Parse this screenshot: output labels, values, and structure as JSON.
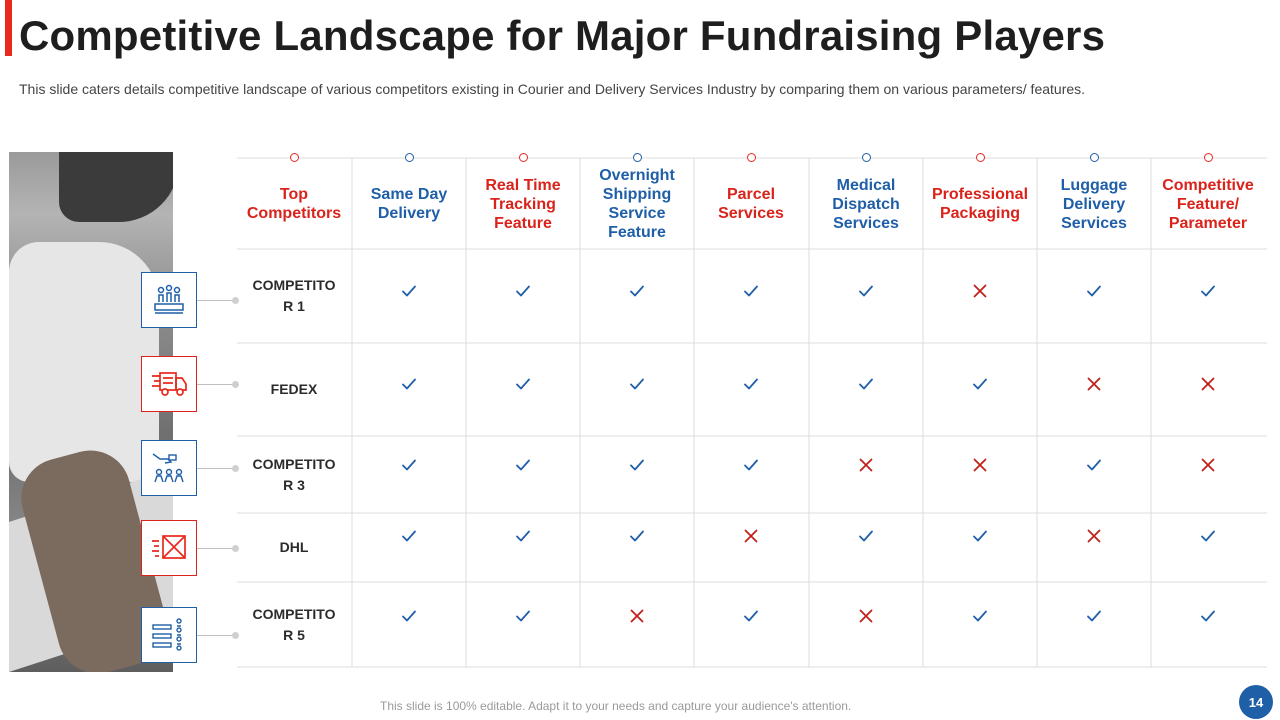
{
  "slide": {
    "title": "Competitive Landscape for Major Fundraising Players",
    "subtitle": "This slide caters details competitive landscape of various competitors existing in Courier and Delivery Services Industry by comparing them on various parameters/ features.",
    "footer": "This slide is 100% editable. Adapt it to your needs and capture your audience's attention.",
    "page_number": "14"
  },
  "colors": {
    "accent_red": "#e8291c",
    "accent_blue": "#1f5fa8",
    "check": "#1f5fa8",
    "cross": "#c4201a"
  },
  "table": {
    "headers": [
      {
        "label": "Top Competitors",
        "color": "red"
      },
      {
        "label": "Same Day Delivery",
        "color": "blue"
      },
      {
        "label": "Real Time Tracking Feature",
        "color": "red"
      },
      {
        "label": "Overnight Shipping Service Feature",
        "color": "blue"
      },
      {
        "label": "Parcel Services",
        "color": "red"
      },
      {
        "label": "Medical Dispatch Services",
        "color": "blue"
      },
      {
        "label": "Professional Packaging",
        "color": "red"
      },
      {
        "label": "Luggage Delivery Services",
        "color": "blue"
      },
      {
        "label": "Competitive Feature/ Parameter",
        "color": "red"
      }
    ],
    "rows": [
      {
        "name": "COMPETITOR 1",
        "icon": "people-podium-icon",
        "marks": [
          "check",
          "check",
          "check",
          "check",
          "check",
          "cross",
          "check",
          "check"
        ]
      },
      {
        "name": "FEDEX",
        "icon": "delivery-truck-icon",
        "marks": [
          "check",
          "check",
          "check",
          "check",
          "check",
          "check",
          "cross",
          "cross"
        ]
      },
      {
        "name": "COMPETITOR 3",
        "icon": "hand-money-team-icon",
        "marks": [
          "check",
          "check",
          "check",
          "check",
          "cross",
          "cross",
          "check",
          "cross"
        ]
      },
      {
        "name": "DHL",
        "icon": "fast-envelope-icon",
        "marks": [
          "check",
          "check",
          "check",
          "cross",
          "check",
          "check",
          "cross",
          "check"
        ]
      },
      {
        "name": "COMPETITOR 5",
        "icon": "org-chart-icon",
        "marks": [
          "check",
          "check",
          "cross",
          "check",
          "cross",
          "check",
          "check",
          "check"
        ]
      }
    ]
  }
}
